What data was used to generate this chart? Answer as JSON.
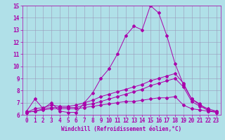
{
  "background_color": "#b0e0e8",
  "grid_color": "#9999bb",
  "line_color": "#aa00aa",
  "xlim": [
    -0.5,
    23.5
  ],
  "ylim": [
    6,
    15
  ],
  "xlabel": "Windchill (Refroidissement éolien,°C)",
  "xlabel_fontsize": 5.5,
  "tick_fontsize": 5.5,
  "xticks": [
    0,
    1,
    2,
    3,
    4,
    5,
    6,
    7,
    8,
    9,
    10,
    11,
    12,
    13,
    14,
    15,
    16,
    17,
    18,
    19,
    20,
    21,
    22,
    23
  ],
  "yticks": [
    6,
    7,
    8,
    9,
    10,
    11,
    12,
    13,
    14,
    15
  ],
  "line1_x": [
    0,
    1,
    2,
    3,
    4,
    5,
    6,
    7,
    8,
    9,
    10,
    11,
    12,
    13,
    14,
    15,
    16,
    17,
    18,
    19,
    20,
    21,
    22,
    23
  ],
  "line1_y": [
    6.3,
    7.3,
    6.5,
    7.0,
    6.3,
    6.2,
    6.2,
    7.0,
    7.8,
    9.0,
    9.8,
    11.0,
    12.5,
    13.3,
    13.0,
    15.0,
    14.4,
    12.5,
    10.2,
    8.5,
    7.3,
    6.9,
    6.3,
    6.3
  ],
  "line2_x": [
    0,
    1,
    2,
    3,
    4,
    5,
    6,
    7,
    8,
    9,
    10,
    11,
    12,
    13,
    14,
    15,
    16,
    17,
    18,
    19,
    20,
    21,
    22,
    23
  ],
  "line2_y": [
    6.2,
    6.5,
    6.6,
    6.8,
    6.7,
    6.7,
    6.8,
    7.0,
    7.2,
    7.5,
    7.7,
    7.9,
    8.1,
    8.3,
    8.5,
    8.8,
    9.0,
    9.2,
    9.4,
    8.6,
    7.3,
    6.8,
    6.5,
    6.3
  ],
  "line3_x": [
    0,
    1,
    2,
    3,
    4,
    5,
    6,
    7,
    8,
    9,
    10,
    11,
    12,
    13,
    14,
    15,
    16,
    17,
    18,
    19,
    20,
    21,
    22,
    23
  ],
  "line3_y": [
    6.2,
    6.3,
    6.4,
    6.5,
    6.5,
    6.5,
    6.5,
    6.6,
    6.7,
    6.8,
    6.9,
    7.0,
    7.1,
    7.1,
    7.2,
    7.3,
    7.4,
    7.4,
    7.5,
    6.8,
    6.5,
    6.4,
    6.3,
    6.2
  ],
  "line4_x": [
    0,
    1,
    2,
    3,
    4,
    5,
    6,
    7,
    8,
    9,
    10,
    11,
    12,
    13,
    14,
    15,
    16,
    17,
    18,
    19,
    20,
    21,
    22,
    23
  ],
  "line4_y": [
    6.2,
    6.3,
    6.5,
    6.6,
    6.6,
    6.6,
    6.6,
    6.8,
    6.9,
    7.1,
    7.3,
    7.5,
    7.7,
    7.9,
    8.1,
    8.4,
    8.6,
    8.8,
    9.0,
    8.3,
    7.1,
    6.7,
    6.4,
    6.2
  ],
  "marker_size": 2.0,
  "line_width": 0.7
}
